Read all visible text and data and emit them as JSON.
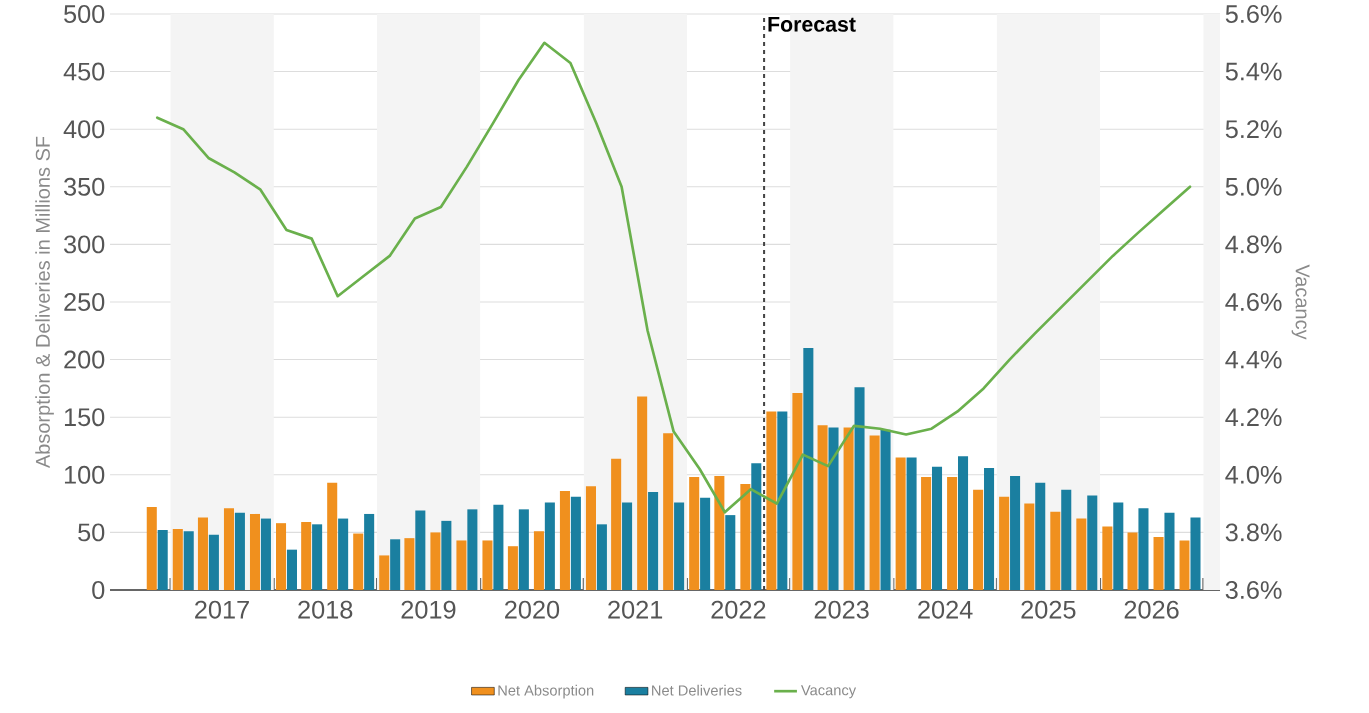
{
  "chart_data": {
    "type": "bar",
    "ylabel": "Absorption & Deliveries in Millions SF",
    "y2label": "Vacancy",
    "x": [
      "2016-11-15",
      "2017-02-15",
      "2017-05-15",
      "2017-08-15",
      "2017-11-15",
      "2018-02-15",
      "2018-05-15",
      "2018-08-15",
      "2018-11-15",
      "2019-02-15",
      "2019-05-15",
      "2019-08-15",
      "2019-11-15",
      "2020-02-15",
      "2020-05-15",
      "2020-08-15",
      "2020-11-15",
      "2021-02-15",
      "2021-05-15",
      "2021-08-15",
      "2021-11-15",
      "2022-02-15",
      "2022-05-15",
      "2022-08-15",
      "2022-11-15",
      "2023-02-15",
      "2023-05-15",
      "2023-08-15",
      "2023-11-15",
      "2024-02-15",
      "2024-05-15",
      "2024-08-15",
      "2024-11-15",
      "2025-02-15",
      "2025-05-15",
      "2025-08-15",
      "2025-11-15",
      "2026-02-15",
      "2026-05-15",
      "2026-08-15",
      "2026-11-15"
    ],
    "series": [
      {
        "name": "Net Absorption",
        "color": "#f0901e",
        "values": [
          72,
          53,
          63,
          71,
          66,
          58,
          59,
          93,
          49,
          30,
          45,
          50,
          43,
          43,
          38,
          51,
          86,
          90,
          114,
          168,
          136,
          98,
          99,
          92,
          155,
          171,
          143,
          141,
          134,
          115,
          98,
          98,
          87,
          81,
          75,
          68,
          62,
          55,
          50,
          46,
          43
        ]
      },
      {
        "name": "Net Deliveries",
        "color": "#1a7fa0",
        "values": [
          52,
          51,
          48,
          67,
          62,
          35,
          57,
          62,
          66,
          44,
          69,
          60,
          70,
          74,
          70,
          76,
          81,
          57,
          76,
          85,
          76,
          80,
          65,
          110,
          155,
          210,
          141,
          176,
          139,
          115,
          107,
          116,
          106,
          99,
          93,
          87,
          82,
          76,
          71,
          67,
          63
        ]
      },
      {
        "name": "Vacancy",
        "color": "#6ab04c",
        "type": "line",
        "axis": "y2",
        "values": [
          5.24,
          5.2,
          5.1,
          5.05,
          4.99,
          4.85,
          4.82,
          4.62,
          4.69,
          4.76,
          4.89,
          4.93,
          5.07,
          5.22,
          5.37,
          5.5,
          5.43,
          5.22,
          5.0,
          4.5,
          4.15,
          4.02,
          3.87,
          3.95,
          3.9,
          4.07,
          4.03,
          4.17,
          4.16,
          4.14,
          4.16,
          4.22,
          4.3,
          4.4,
          4.49,
          4.58,
          4.67,
          4.76,
          4.84,
          4.92,
          5.0
        ]
      }
    ],
    "xlim": [
      "2016-06-01",
      "2027-03-01"
    ],
    "xticks": [
      {
        "value": "2017-01-01",
        "label": null
      },
      {
        "value": "2017-07-02",
        "label": "2017"
      },
      {
        "value": "2018-01-01",
        "label": null
      },
      {
        "value": "2018-07-02",
        "label": "2018"
      },
      {
        "value": "2019-01-01",
        "label": null
      },
      {
        "value": "2019-07-02",
        "label": "2019"
      },
      {
        "value": "2020-01-01",
        "label": null
      },
      {
        "value": "2020-07-02",
        "label": "2020"
      },
      {
        "value": "2021-01-01",
        "label": null
      },
      {
        "value": "2021-07-02",
        "label": "2021"
      },
      {
        "value": "2022-01-01",
        "label": null
      },
      {
        "value": "2022-07-02",
        "label": "2022"
      },
      {
        "value": "2023-01-01",
        "label": null
      },
      {
        "value": "2023-07-02",
        "label": "2023"
      },
      {
        "value": "2024-01-01",
        "label": null
      },
      {
        "value": "2024-07-02",
        "label": "2024"
      },
      {
        "value": "2025-01-01",
        "label": null
      },
      {
        "value": "2025-07-02",
        "label": "2025"
      },
      {
        "value": "2026-01-01",
        "label": null
      },
      {
        "value": "2026-07-02",
        "label": "2026"
      },
      {
        "value": "2027-01-01",
        "label": null
      }
    ],
    "ylim": [
      0,
      500
    ],
    "yticks": [
      0,
      50,
      100,
      150,
      200,
      250,
      300,
      350,
      400,
      450,
      500
    ],
    "y2lim": [
      3.6,
      5.6
    ],
    "y2ticks": [
      {
        "value": 3.6,
        "label": "3.6%"
      },
      {
        "value": 3.8,
        "label": "3.8%"
      },
      {
        "value": 4.0,
        "label": "4.0%"
      },
      {
        "value": 4.2,
        "label": "4.2%"
      },
      {
        "value": 4.4,
        "label": "4.4%"
      },
      {
        "value": 4.6,
        "label": "4.6%"
      },
      {
        "value": 4.8,
        "label": "4.8%"
      },
      {
        "value": 5.0,
        "label": "5.0%"
      },
      {
        "value": 5.2,
        "label": "5.2%"
      },
      {
        "value": 5.4,
        "label": "5.4%"
      },
      {
        "value": 5.6,
        "label": "5.6%"
      }
    ],
    "ref_lines": [
      {
        "axis": "x",
        "value": "2022-10-01",
        "label": "Forecast",
        "color": "#444444",
        "line_style": "dashed"
      }
    ],
    "bands": [
      {
        "axis": "x",
        "from": "2017-01-01",
        "to": "2018-01-01",
        "color": "#f4f4f4"
      },
      {
        "axis": "x",
        "from": "2019-01-01",
        "to": "2020-01-01",
        "color": "#f4f4f4"
      },
      {
        "axis": "x",
        "from": "2021-01-01",
        "to": "2022-01-01",
        "color": "#f4f4f4"
      },
      {
        "axis": "x",
        "from": "2023-01-01",
        "to": "2024-01-01",
        "color": "#f4f4f4"
      },
      {
        "axis": "x",
        "from": "2025-01-01",
        "to": "2026-01-01",
        "color": "#f4f4f4"
      },
      {
        "axis": "x",
        "from": "2027-01-01",
        "to": "2027-03-01",
        "color": "#f4f4f4"
      }
    ],
    "grid": "y",
    "legend": "bottom"
  }
}
